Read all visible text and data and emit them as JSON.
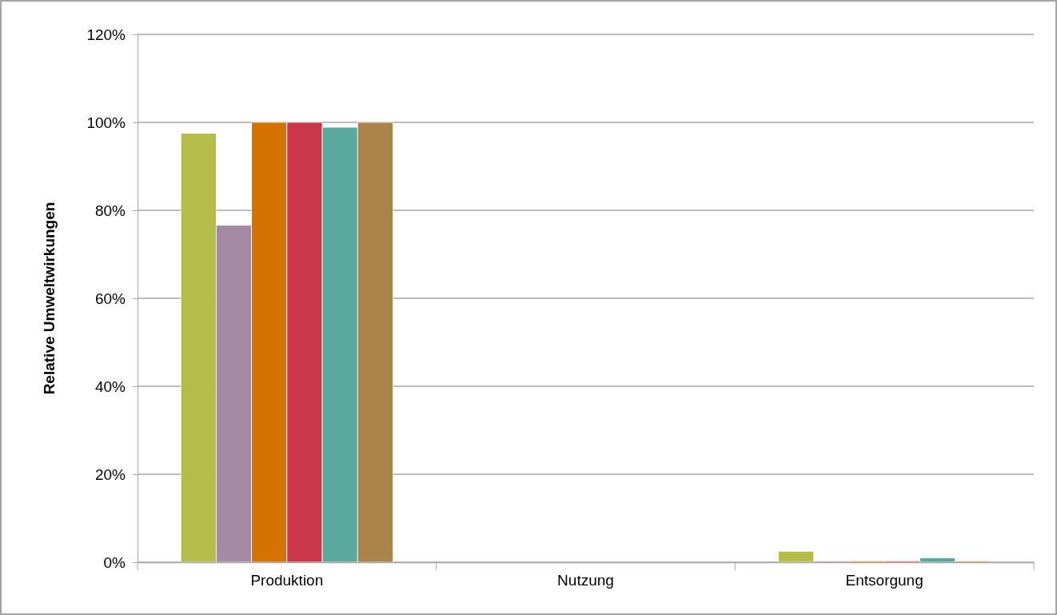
{
  "chart_data": {
    "type": "bar",
    "ylabel": "Relative Umweltwirkungen",
    "categories": [
      "Produktion",
      "Nutzung",
      "Entsorgung"
    ],
    "series": [
      {
        "color": "#b5bd48",
        "values": [
          97.5,
          0,
          2.5
        ]
      },
      {
        "color": "#a58aa5",
        "values": [
          76.6,
          0,
          0.3
        ]
      },
      {
        "color": "#d47200",
        "values": [
          100,
          0,
          0.3
        ]
      },
      {
        "color": "#cb374a",
        "values": [
          100,
          0,
          0.3
        ]
      },
      {
        "color": "#5aa99e",
        "values": [
          98.9,
          0,
          1.0
        ]
      },
      {
        "color": "#a98349",
        "values": [
          100,
          0,
          0.3
        ]
      }
    ],
    "ylim": [
      0,
      120
    ],
    "yticks": [
      {
        "value": 0,
        "label": "0%"
      },
      {
        "value": 20,
        "label": "20%"
      },
      {
        "value": 40,
        "label": "40%"
      },
      {
        "value": 60,
        "label": "60%"
      },
      {
        "value": 80,
        "label": "80%"
      },
      {
        "value": 100,
        "label": "100%"
      },
      {
        "value": 120,
        "label": "120%"
      }
    ],
    "grid": "y"
  }
}
